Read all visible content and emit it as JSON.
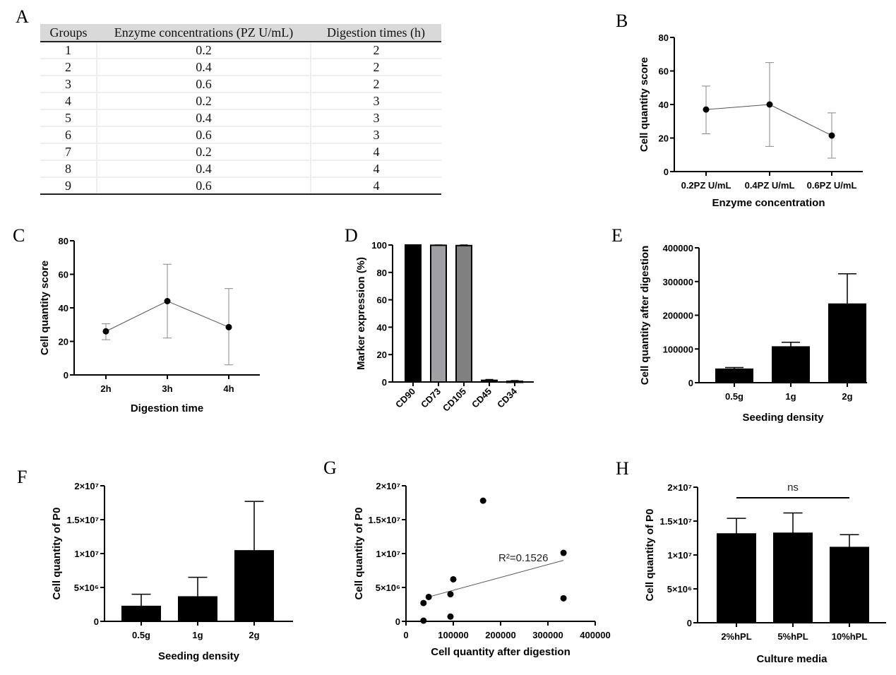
{
  "panel_labels": [
    "A",
    "B",
    "C",
    "D",
    "E",
    "F",
    "G",
    "H"
  ],
  "table_a": {
    "headers": [
      "Groups",
      "Enzyme concentrations (PZ U/mL)",
      "Digestion times (h)"
    ],
    "rows": [
      [
        "1",
        "0.2",
        "2"
      ],
      [
        "2",
        "0.4",
        "2"
      ],
      [
        "3",
        "0.6",
        "2"
      ],
      [
        "4",
        "0.2",
        "3"
      ],
      [
        "5",
        "0.4",
        "3"
      ],
      [
        "6",
        "0.6",
        "3"
      ],
      [
        "7",
        "0.2",
        "4"
      ],
      [
        "8",
        "0.4",
        "4"
      ],
      [
        "9",
        "0.6",
        "4"
      ]
    ]
  },
  "chart_data": [
    {
      "panel": "B",
      "type": "line",
      "categories": [
        "0.2PZ U/mL",
        "0.4PZ U/mL",
        "0.6PZ U/mL"
      ],
      "values": [
        37,
        40,
        21.5
      ],
      "err_low": [
        22.5,
        15,
        8
      ],
      "err_high": [
        51,
        65,
        35
      ],
      "xlabel": "Enzyme concentration",
      "ylabel": "Cell quantity score",
      "ylim": [
        0,
        80
      ],
      "yticks": [
        0,
        20,
        40,
        60,
        80
      ],
      "ytick_labels": [
        "0",
        "20",
        "40",
        "60",
        "80"
      ],
      "grid": false,
      "error_color": "#888888"
    },
    {
      "panel": "C",
      "type": "line",
      "categories": [
        "2h",
        "3h",
        "4h"
      ],
      "values": [
        26,
        44,
        28.5
      ],
      "err_low": [
        21,
        22,
        6
      ],
      "err_high": [
        30.5,
        66,
        51.5
      ],
      "xlabel": "Digestion time",
      "ylabel": "Cell quantity score",
      "ylim": [
        0,
        80
      ],
      "yticks": [
        0,
        20,
        40,
        60,
        80
      ],
      "ytick_labels": [
        "0",
        "20",
        "40",
        "60",
        "80"
      ],
      "grid": false,
      "error_color": "#888888"
    },
    {
      "panel": "D",
      "type": "bar",
      "categories": [
        "CD90",
        "CD73",
        "CD105",
        "CD45",
        "CD34"
      ],
      "values": [
        100,
        99.8,
        99.6,
        1.2,
        0.5
      ],
      "err_high": [
        100,
        100,
        100,
        1.8,
        1
      ],
      "colors": [
        "#000000",
        "#a0a0a4",
        "#808080",
        "#000000",
        "#000000"
      ],
      "xlabel": "",
      "ylabel": "Marker expression (%)",
      "ylim": [
        0,
        100
      ],
      "yticks": [
        0,
        20,
        40,
        60,
        80,
        100
      ],
      "ytick_labels": [
        "0",
        "20",
        "40",
        "60",
        "80",
        "100"
      ],
      "grid": false
    },
    {
      "panel": "E",
      "type": "bar",
      "categories": [
        "0.5g",
        "1g",
        "2g"
      ],
      "values": [
        40000,
        106000,
        233000
      ],
      "err_high": [
        45000,
        120000,
        323000
      ],
      "colors": [
        "#000000",
        "#000000",
        "#000000"
      ],
      "xlabel": "Seeding density",
      "ylabel": "Cell quantity after digestion",
      "ylim": [
        0,
        400000
      ],
      "yticks": [
        0,
        100000,
        200000,
        300000,
        400000
      ],
      "ytick_labels": [
        "0",
        "100000",
        "200000",
        "300000",
        "400000"
      ],
      "grid": false
    },
    {
      "panel": "F",
      "type": "bar",
      "categories": [
        "0.5g",
        "1g",
        "2g"
      ],
      "values": [
        2200000,
        3600000,
        10400000
      ],
      "err_high": [
        4000000,
        6500000,
        17700000
      ],
      "colors": [
        "#000000",
        "#000000",
        "#000000"
      ],
      "xlabel": "Seeding density",
      "ylabel": "Cell quantity of P0",
      "ylim": [
        0,
        20000000
      ],
      "yticks": [
        0,
        5000000,
        10000000,
        15000000,
        20000000
      ],
      "ytick_labels": [
        "0",
        "5×10⁶",
        "1×10⁷",
        "1.5×10⁷",
        "2×10⁷"
      ],
      "grid": false
    },
    {
      "panel": "G",
      "type": "scatter",
      "x": [
        37000,
        37000,
        48000,
        94000,
        100000,
        94000,
        163000,
        333000,
        333000
      ],
      "y": [
        100000,
        2700000,
        3600000,
        4000000,
        6200000,
        700000,
        17800000,
        10100000,
        3400000
      ],
      "trendline": {
        "x": [
          48000,
          333000
        ],
        "y": [
          3600000,
          9000000
        ],
        "annotation": "R²=0.1526"
      },
      "xlabel": "Cell quantity after digestion",
      "ylabel": "Cell quantity of P0",
      "xlim": [
        0,
        400000
      ],
      "xticks": [
        0,
        100000,
        200000,
        300000,
        400000
      ],
      "xtick_labels": [
        "0",
        "100000",
        "200000",
        "300000",
        "400000"
      ],
      "ylim": [
        0,
        20000000
      ],
      "yticks": [
        0,
        5000000,
        10000000,
        15000000,
        20000000
      ],
      "ytick_labels": [
        "0",
        "5×10⁶",
        "1×10⁷",
        "1.5×10⁷",
        "2×10⁷"
      ],
      "grid": false
    },
    {
      "panel": "H",
      "type": "bar",
      "categories": [
        "2%hPL",
        "5%hPL",
        "10%hPL"
      ],
      "values": [
        13100000,
        13200000,
        11100000
      ],
      "err_high": [
        15400000,
        16200000,
        13000000
      ],
      "colors": [
        "#000000",
        "#000000",
        "#000000"
      ],
      "significance": "ns",
      "xlabel": "Culture media",
      "ylabel": "Cell quantity of P0",
      "ylim": [
        0,
        20000000
      ],
      "yticks": [
        0,
        5000000,
        10000000,
        15000000,
        20000000
      ],
      "ytick_labels": [
        "0",
        "5×10⁶",
        "1×10⁷",
        "1.5×10⁷",
        "2×10⁷"
      ],
      "grid": false
    }
  ]
}
